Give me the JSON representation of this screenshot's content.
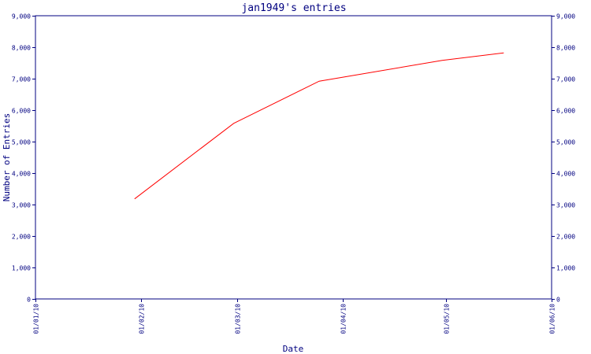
{
  "chart_data": {
    "type": "line",
    "title": "jan1949's entries",
    "xlabel": "Date",
    "ylabel": "Number of Entries",
    "x_ticks": [
      "01/01/10",
      "01/02/10",
      "01/03/10",
      "01/04/10",
      "01/05/10",
      "01/06/10"
    ],
    "x_tick_dates": [
      "2010-01-01",
      "2010-02-01",
      "2010-03-01",
      "2010-04-01",
      "2010-05-01",
      "2010-06-01"
    ],
    "y_ticks": [
      "0",
      "1,000",
      "2,000",
      "3,000",
      "4,000",
      "5,000",
      "6,000",
      "7,000",
      "8,000",
      "9,000"
    ],
    "ylim": [
      0,
      9000
    ],
    "xlim": [
      "2010-01-01",
      "2010-06-01"
    ],
    "grid": false,
    "right_axis": true,
    "colors": {
      "axis": "#000080",
      "series": "#ff0000"
    },
    "series": [
      {
        "x": [
          "2010-01-30",
          "2010-02-28",
          "2010-03-25",
          "2010-04-30",
          "2010-05-18"
        ],
        "values": [
          3180,
          5580,
          6920,
          7580,
          7820
        ]
      }
    ]
  }
}
